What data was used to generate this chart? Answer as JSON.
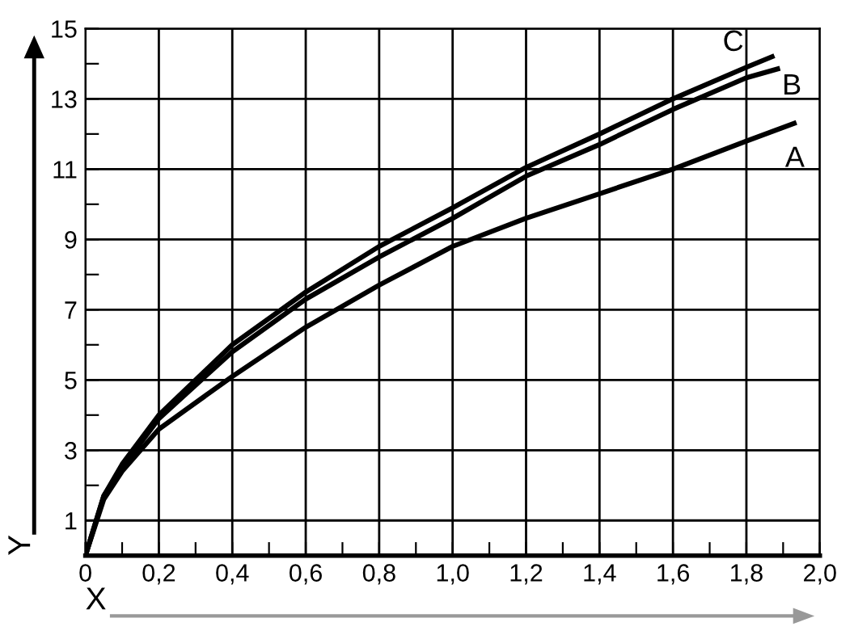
{
  "chart_data": {
    "type": "line",
    "xlabel": "X",
    "ylabel": "Y",
    "xlim": [
      0,
      2.0
    ],
    "ylim": [
      0,
      15
    ],
    "xticks": [
      {
        "value": 0,
        "label": "0"
      },
      {
        "value": 0.1,
        "label": null
      },
      {
        "value": 0.2,
        "label": "0,2"
      },
      {
        "value": 0.3,
        "label": null
      },
      {
        "value": 0.4,
        "label": "0,4"
      },
      {
        "value": 0.5,
        "label": null
      },
      {
        "value": 0.6,
        "label": "0,6"
      },
      {
        "value": 0.7,
        "label": null
      },
      {
        "value": 0.8,
        "label": "0,8"
      },
      {
        "value": 0.9,
        "label": null
      },
      {
        "value": 1.0,
        "label": "1,0"
      },
      {
        "value": 1.1,
        "label": null
      },
      {
        "value": 1.2,
        "label": "1,2"
      },
      {
        "value": 1.3,
        "label": null
      },
      {
        "value": 1.4,
        "label": "1,4"
      },
      {
        "value": 1.5,
        "label": null
      },
      {
        "value": 1.6,
        "label": "1,6"
      },
      {
        "value": 1.7,
        "label": null
      },
      {
        "value": 1.8,
        "label": "1,8"
      },
      {
        "value": 1.9,
        "label": null
      },
      {
        "value": 2.0,
        "label": "2,0"
      }
    ],
    "yticks": [
      1,
      {
        "value": 2,
        "label": null
      },
      3,
      {
        "value": 4,
        "label": null
      },
      5,
      {
        "value": 6,
        "label": null
      },
      7,
      {
        "value": 8,
        "label": null
      },
      9,
      {
        "value": 10,
        "label": null
      },
      11,
      {
        "value": 12,
        "label": null
      },
      13,
      {
        "value": 14,
        "label": null
      },
      15
    ],
    "grid": true,
    "legend": false,
    "marker": "none",
    "line_style": "solid",
    "series": [
      {
        "name": "A",
        "color": "#000000",
        "x": [
          0,
          0.05,
          0.1,
          0.2,
          0.4,
          0.6,
          0.8,
          1.0,
          1.2,
          1.4,
          1.6,
          1.8,
          1.93
        ],
        "values": [
          0,
          1.6,
          2.4,
          3.6,
          5.1,
          6.5,
          7.7,
          8.8,
          9.6,
          10.3,
          11.0,
          11.8,
          12.3
        ]
      },
      {
        "name": "B",
        "color": "#000000",
        "x": [
          0,
          0.05,
          0.1,
          0.2,
          0.4,
          0.6,
          0.8,
          1.0,
          1.2,
          1.4,
          1.6,
          1.8,
          1.885
        ],
        "values": [
          0,
          1.7,
          2.5,
          3.9,
          5.8,
          7.3,
          8.5,
          9.6,
          10.8,
          11.7,
          12.7,
          13.6,
          13.85
        ]
      },
      {
        "name": "C",
        "color": "#000000",
        "x": [
          0,
          0.05,
          0.1,
          0.2,
          0.4,
          0.6,
          0.8,
          1.0,
          1.2,
          1.4,
          1.6,
          1.8,
          1.87
        ],
        "values": [
          0,
          1.7,
          2.6,
          4.0,
          6.0,
          7.5,
          8.8,
          9.9,
          11.05,
          12.0,
          13.0,
          13.9,
          14.2
        ]
      }
    ]
  }
}
